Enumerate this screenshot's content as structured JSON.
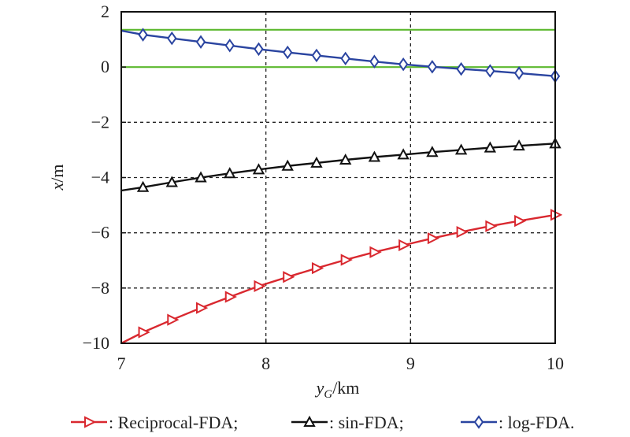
{
  "chart_data": {
    "type": "line",
    "title": "",
    "xlabel": "y_G/km",
    "xlabel_main": "y",
    "xlabel_sub": "G",
    "xlabel_unit": "/km",
    "ylabel": "x/m",
    "ylabel_var": "x",
    "ylabel_unit": "/m",
    "xlim": [
      7,
      10
    ],
    "ylim": [
      -10,
      2
    ],
    "xticks": [
      7,
      8,
      9,
      10
    ],
    "xtick_labels": [
      "7",
      "8",
      "9",
      "10"
    ],
    "yticks": [
      2,
      0,
      -2,
      -4,
      -6,
      -8,
      -10
    ],
    "ytick_labels": [
      "2",
      "0",
      "−2",
      "−4",
      "−6",
      "−8",
      "−10"
    ],
    "grid": "dashed",
    "reference_lines": [
      {
        "y": 1.35,
        "color": "#5cb82e"
      },
      {
        "y": 0,
        "color": "#5cb82e"
      }
    ],
    "legend_position": "bottom",
    "series": [
      {
        "name": "Reciprocal-FDA",
        "legend_label": ": Reciprocal-FDA;",
        "color": "#d9282f",
        "marker": "triangle-right",
        "x": [
          7,
          7.15,
          7.35,
          7.55,
          7.75,
          7.95,
          8.15,
          8.35,
          8.55,
          8.75,
          8.95,
          9.15,
          9.35,
          9.55,
          9.75,
          10
        ],
        "values": [
          -10.0,
          -9.6,
          -9.15,
          -8.72,
          -8.32,
          -7.93,
          -7.6,
          -7.28,
          -6.98,
          -6.7,
          -6.45,
          -6.2,
          -5.97,
          -5.76,
          -5.57,
          -5.35
        ]
      },
      {
        "name": "sin-FDA",
        "legend_label": ": sin-FDA;",
        "color": "#111111",
        "marker": "triangle-up",
        "x": [
          7,
          7.15,
          7.35,
          7.55,
          7.75,
          7.95,
          8.15,
          8.35,
          8.55,
          8.75,
          8.95,
          9.15,
          9.35,
          9.55,
          9.75,
          10
        ],
        "values": [
          -4.47,
          -4.35,
          -4.17,
          -4.0,
          -3.85,
          -3.71,
          -3.58,
          -3.47,
          -3.36,
          -3.26,
          -3.17,
          -3.08,
          -3.0,
          -2.92,
          -2.85,
          -2.77
        ]
      },
      {
        "name": "log-FDA",
        "legend_label": ": log-FDA.",
        "color": "#2a44a0",
        "marker": "diamond",
        "x": [
          7,
          7.15,
          7.35,
          7.55,
          7.75,
          7.95,
          8.15,
          8.35,
          8.55,
          8.75,
          8.95,
          9.15,
          9.35,
          9.55,
          9.75,
          10
        ],
        "values": [
          1.32,
          1.17,
          1.04,
          0.91,
          0.78,
          0.65,
          0.53,
          0.42,
          0.31,
          0.2,
          0.1,
          0.01,
          -0.07,
          -0.14,
          -0.22,
          -0.33
        ]
      }
    ]
  }
}
